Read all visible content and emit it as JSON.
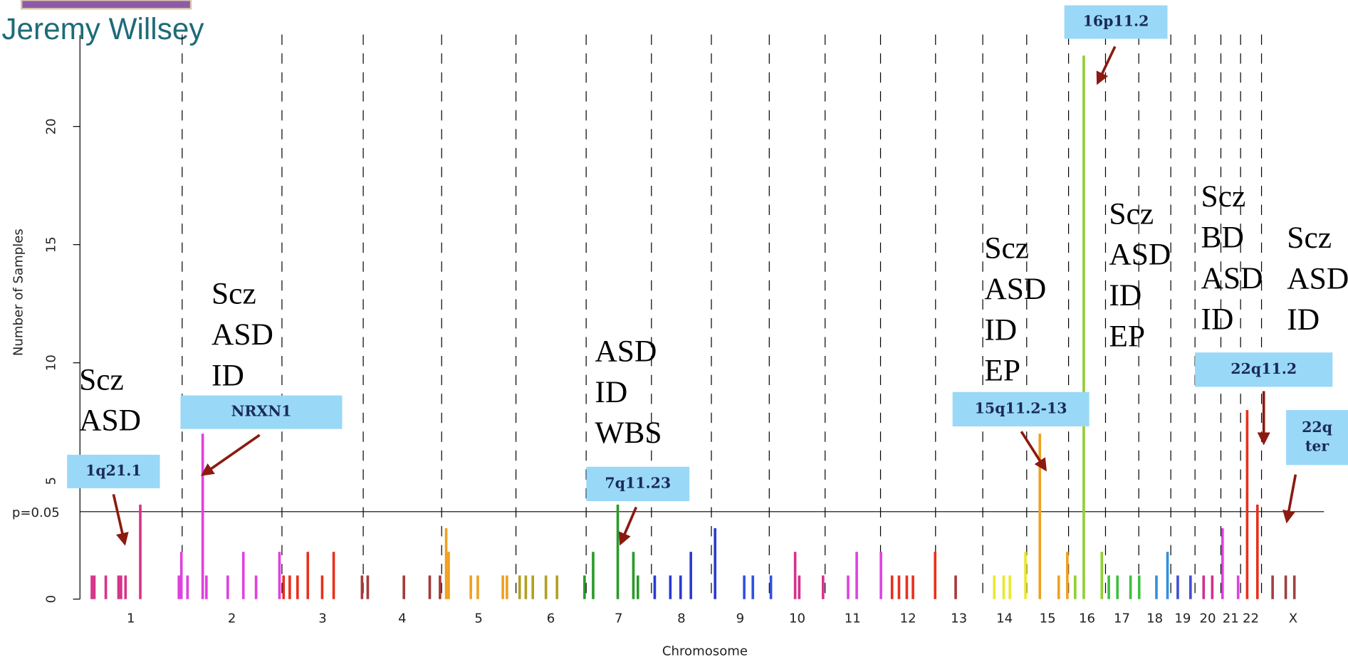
{
  "header": {
    "speaker": "Jeremy Willsey"
  },
  "chart_data": {
    "type": "bar",
    "y_label": "Number of Samples",
    "x_label": "Chromosome",
    "xlim": [
      0,
      3030
    ],
    "ylim": [
      0,
      23.5
    ],
    "yticks": [
      0,
      5,
      10,
      15,
      20
    ],
    "xticks": [
      {
        "value": 124,
        "label": "1"
      },
      {
        "value": 370,
        "label": "2"
      },
      {
        "value": 591,
        "label": "3"
      },
      {
        "value": 785,
        "label": "4"
      },
      {
        "value": 971,
        "label": "5"
      },
      {
        "value": 1147,
        "label": "6"
      },
      {
        "value": 1312,
        "label": "7"
      },
      {
        "value": 1465,
        "label": "8"
      },
      {
        "value": 1608,
        "label": "9"
      },
      {
        "value": 1747,
        "label": "10"
      },
      {
        "value": 1882,
        "label": "11"
      },
      {
        "value": 2017,
        "label": "12"
      },
      {
        "value": 2141,
        "label": "13"
      },
      {
        "value": 2252,
        "label": "14"
      },
      {
        "value": 2357,
        "label": "15"
      },
      {
        "value": 2453,
        "label": "16"
      },
      {
        "value": 2538,
        "label": "17"
      },
      {
        "value": 2618,
        "label": "18"
      },
      {
        "value": 2686,
        "label": "19"
      },
      {
        "value": 2747,
        "label": "20"
      },
      {
        "value": 2803,
        "label": "21"
      },
      {
        "value": 2852,
        "label": "22"
      },
      {
        "value": 2955,
        "label": "X"
      }
    ],
    "chromosome_boundaries": [
      249,
      492,
      690,
      881,
      1062,
      1233,
      1392,
      1538,
      1679,
      1815,
      1950,
      2084,
      2199,
      2306,
      2408,
      2498,
      2579,
      2657,
      2716,
      2779,
      2827,
      2878
    ],
    "threshold": {
      "value": 3.7,
      "label": "p=0.05"
    },
    "x": [
      29,
      35,
      63,
      94,
      100,
      111,
      147,
      241,
      247,
      262,
      299,
      308,
      360,
      398,
      429,
      486,
      496,
      511,
      530,
      555,
      590,
      618,
      687,
      701,
      789,
      852,
      877,
      892,
      898,
      952,
      969,
      1030,
      1040,
      1071,
      1086,
      1103,
      1135,
      1162,
      1229,
      1250,
      1310,
      1348,
      1359,
      1400,
      1438,
      1463,
      1488,
      1547,
      1618,
      1639,
      1683,
      1742,
      1752,
      1810,
      1871,
      1892,
      1951,
      1978,
      1995,
      2014,
      2029,
      2083,
      2133,
      2227,
      2250,
      2265,
      2303,
      2338,
      2384,
      2405,
      2424,
      2445,
      2489,
      2506,
      2527,
      2559,
      2580,
      2622,
      2649,
      2674,
      2705,
      2737,
      2758,
      2783,
      2821,
      2843,
      2868,
      2905,
      2937,
      2958
    ],
    "values": [
      1,
      1,
      1,
      1,
      1,
      1,
      4,
      1,
      2,
      1,
      7,
      1,
      1,
      2,
      1,
      2,
      1,
      1,
      1,
      2,
      1,
      2,
      1,
      1,
      1,
      1,
      1,
      3,
      2,
      1,
      1,
      1,
      1,
      1,
      1,
      1,
      1,
      1,
      1,
      2,
      4,
      2,
      1,
      1,
      1,
      1,
      2,
      3,
      1,
      1,
      1,
      2,
      1,
      1,
      1,
      2,
      2,
      1,
      1,
      1,
      1,
      2,
      1,
      1,
      1,
      1,
      2,
      7,
      1,
      2,
      1,
      23,
      2,
      1,
      1,
      1,
      1,
      1,
      2,
      1,
      1,
      1,
      1,
      3,
      1,
      8,
      4,
      1,
      1,
      1
    ],
    "colors": [
      "#d6338a",
      "#d6338a",
      "#d6338a",
      "#d6338a",
      "#d6338a",
      "#d6338a",
      "#d6338a",
      "#e040e0",
      "#e040e0",
      "#e040e0",
      "#e040e0",
      "#e040e0",
      "#e040e0",
      "#e040e0",
      "#e040e0",
      "#e040e0",
      "#e8301c",
      "#e8301c",
      "#e8301c",
      "#e8301c",
      "#e8301c",
      "#e8301c",
      "#a43a3a",
      "#a43a3a",
      "#a43a3a",
      "#a43a3a",
      "#a43a3a",
      "#f0a020",
      "#f0a020",
      "#f0a020",
      "#f0a020",
      "#f0a020",
      "#f0a020",
      "#b0a020",
      "#b0a020",
      "#b0a020",
      "#b0a020",
      "#b0a020",
      "#2a9a2a",
      "#2a9a2a",
      "#2a9a2a",
      "#2a9a2a",
      "#2a9a2a",
      "#2a3ad0",
      "#2a3ad0",
      "#2a3ad0",
      "#2a3ad0",
      "#2a3ad0",
      "#3050e0",
      "#3050e0",
      "#3050e0",
      "#d63090",
      "#d63090",
      "#d63090",
      "#e040e0",
      "#e040e0",
      "#e040e0",
      "#e8301c",
      "#e8301c",
      "#e8301c",
      "#e8301c",
      "#e8301c",
      "#a43a3a",
      "#e8e830",
      "#e8e830",
      "#e8e830",
      "#e8e830",
      "#f0a020",
      "#f0a020",
      "#f0a020",
      "#8fd030",
      "#8fd030",
      "#8fd030",
      "#40c040",
      "#40c040",
      "#40c040",
      "#40c040",
      "#3090e0",
      "#3090e0",
      "#4050d0",
      "#4050d0",
      "#d03090",
      "#d03090",
      "#e040e0",
      "#e040e0",
      "#e8301c",
      "#e8301c",
      "#a04040",
      "#a04040",
      "#a04040"
    ],
    "annotations": [
      {
        "label_lines": [
          "1q21.1"
        ],
        "disorders": [
          "Scz",
          "ASD"
        ]
      },
      {
        "label_lines": [
          "NRXN1"
        ],
        "disorders": [
          "Scz",
          "ASD",
          "ID"
        ]
      },
      {
        "label_lines": [
          "7q11.23"
        ],
        "disorders": [
          "ASD",
          "ID",
          "WBS"
        ]
      },
      {
        "label_lines": [
          "15q11.2-13"
        ],
        "disorders": [
          "Scz",
          "ASD",
          "ID",
          "EP"
        ]
      },
      {
        "label_lines": [
          "16p11.2"
        ],
        "disorders": [
          "Scz",
          "ASD",
          "ID",
          "EP"
        ]
      },
      {
        "label_lines": [
          "22q11.2"
        ],
        "disorders": [
          "Scz",
          "BD",
          "ASD",
          "ID"
        ]
      },
      {
        "label_lines": [
          "22q",
          "ter"
        ],
        "disorders": [
          "Scz",
          "ASD",
          "ID"
        ]
      }
    ]
  }
}
